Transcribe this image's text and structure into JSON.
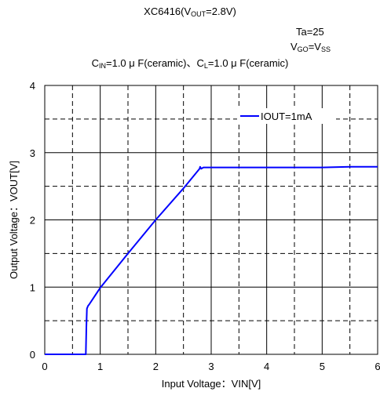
{
  "header": {
    "line1": {
      "prefix": "XC6416(V",
      "sub": "OUT",
      "suffix": "=2.8V)"
    },
    "line2": "Ta=25",
    "line3": {
      "v1": "V",
      "sub1": "GO",
      "eq": "=V",
      "sub2": "SS"
    },
    "line4": {
      "c1": "C",
      "sub1": "IN",
      "mid": "=1.0 μ F(ceramic)、C",
      "sub2": "L",
      "end": "=1.0 μ F(ceramic)"
    }
  },
  "chart_data": {
    "type": "line",
    "xlabel": "Input Voltage：VIN[V]",
    "ylabel": "Output Voltage：VOUT[V]",
    "xlim": [
      0,
      6
    ],
    "ylim": [
      0,
      4
    ],
    "xticks": [
      0,
      1,
      2,
      3,
      4,
      5,
      6
    ],
    "yticks": [
      0,
      1,
      2,
      3,
      4
    ],
    "grid": {
      "major": "solid",
      "minor": "dashed",
      "minor_step_x": 0.5,
      "minor_step_y": 0.5
    },
    "legend": {
      "position": "top-right"
    },
    "series": [
      {
        "name": "IOUT=1mA",
        "color": "#0000ff",
        "x": [
          0,
          0.74,
          0.75,
          0.76,
          0.78,
          0.8,
          1.0,
          1.5,
          2.0,
          2.5,
          2.79,
          2.8,
          2.82,
          2.86,
          2.9,
          3.0,
          3.5,
          4.0,
          4.5,
          5.0,
          5.5,
          6.0
        ],
        "y": [
          0,
          0,
          0.4,
          0.68,
          0.72,
          0.74,
          0.99,
          1.5,
          2.0,
          2.47,
          2.76,
          2.79,
          2.76,
          2.78,
          2.78,
          2.78,
          2.78,
          2.78,
          2.78,
          2.78,
          2.79,
          2.79
        ]
      }
    ]
  }
}
